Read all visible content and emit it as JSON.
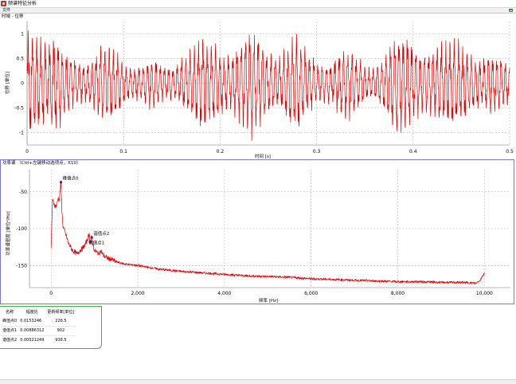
{
  "window": {
    "title": "频谱特征分析",
    "menu": "文件"
  },
  "top_panel": {
    "title": "时域 - 位移"
  },
  "bottom_panel": {
    "title": "功率谱 （Ctrl+左键移动选项点，X10）"
  },
  "colors": {
    "signal": "#e00000",
    "grid": "#a8a8a8",
    "table_border": "#3cb043",
    "bottom_frame": "#7a7acc"
  },
  "chart_data": [
    {
      "type": "line",
      "title": "",
      "xlabel": "时间 [s]",
      "ylabel": "位移 [单位]",
      "xlim": [
        0,
        0.5
      ],
      "ylim": [
        -1.25,
        1.25
      ],
      "x_ticks": [
        "0",
        "0.1",
        "0.2",
        "0.3",
        "0.4",
        "0.5"
      ],
      "y_ticks": [
        "1",
        "0.5",
        "0",
        "-0.5",
        "-1"
      ],
      "y_tick_values": [
        1,
        0.5,
        0,
        -0.5,
        -1
      ],
      "envelope": {
        "x": [
          0,
          0.01,
          0.02,
          0.03,
          0.04,
          0.05,
          0.06,
          0.07,
          0.08,
          0.09,
          0.1,
          0.11,
          0.12,
          0.13,
          0.14,
          0.15,
          0.16,
          0.17,
          0.18,
          0.19,
          0.2,
          0.21,
          0.22,
          0.23,
          0.24,
          0.25,
          0.26,
          0.27,
          0.28,
          0.29,
          0.3,
          0.31,
          0.32,
          0.33,
          0.34,
          0.35,
          0.36,
          0.37,
          0.38,
          0.39,
          0.4,
          0.41,
          0.42,
          0.43,
          0.44,
          0.45,
          0.46,
          0.47,
          0.48,
          0.49,
          0.5
        ],
        "amplitude": [
          1.05,
          0.95,
          0.8,
          0.95,
          0.6,
          0.45,
          0.35,
          0.55,
          0.8,
          0.65,
          0.4,
          0.3,
          0.35,
          0.5,
          0.35,
          0.3,
          0.45,
          0.7,
          0.9,
          0.8,
          0.6,
          0.5,
          0.7,
          1.1,
          0.85,
          0.6,
          0.45,
          0.7,
          0.9,
          0.6,
          0.4,
          0.35,
          0.5,
          0.75,
          0.55,
          0.35,
          0.3,
          0.5,
          0.95,
          1.0,
          0.7,
          0.55,
          0.6,
          0.75,
          0.85,
          0.75,
          0.55,
          0.45,
          0.6,
          0.5,
          0.4
        ],
        "dominant_frequency_hz": 226.5
      }
    },
    {
      "type": "line",
      "title": "",
      "xlabel": "频率 [Hz]",
      "ylabel": "功率谱密度 [单位²/Hz]",
      "xlim": [
        -500,
        10600
      ],
      "ylim": [
        -180,
        -20
      ],
      "x_ticks": [
        "0",
        "2,000",
        "4,000",
        "6,000",
        "8,000",
        "10,000"
      ],
      "x_tick_values": [
        0,
        2000,
        4000,
        6000,
        8000,
        10000
      ],
      "y_ticks": [
        "-50",
        "-100",
        "-150"
      ],
      "y_tick_values": [
        -50,
        -100,
        -150
      ],
      "x": [
        0,
        30,
        60,
        100,
        130,
        160,
        190,
        210,
        226.5,
        245,
        270,
        300,
        350,
        400,
        450,
        500,
        550,
        600,
        650,
        700,
        750,
        800,
        850,
        880,
        902,
        938.5,
        970,
        1000,
        1050,
        1100,
        1150,
        1200,
        1300,
        1400,
        1500,
        1700,
        2000,
        2500,
        3000,
        3500,
        4000,
        4500,
        5000,
        5500,
        6000,
        6500,
        7000,
        7500,
        8000,
        8500,
        9000,
        9500,
        9800,
        9900,
        10000
      ],
      "y": [
        -128,
        -62,
        -65,
        -70,
        -68,
        -58,
        -62,
        -45,
        -37,
        -70,
        -95,
        -102,
        -110,
        -120,
        -125,
        -130,
        -132,
        -135,
        -130,
        -128,
        -125,
        -120,
        -112,
        -108,
        -118,
        -112,
        -122,
        -130,
        -132,
        -134,
        -130,
        -136,
        -140,
        -142,
        -145,
        -148,
        -150,
        -155,
        -158,
        -160,
        -162,
        -164,
        -165,
        -166,
        -168,
        -169,
        -170,
        -171,
        -172,
        -172,
        -173,
        -173,
        -174,
        -170,
        -160
      ],
      "peaks": [
        {
          "label": "峰值点0",
          "x": 226.5,
          "y": -37
        },
        {
          "label": "谐值点1",
          "x": 902,
          "y": -118
        },
        {
          "label": "谐值点2",
          "x": 938.5,
          "y": -112
        }
      ]
    }
  ],
  "table": {
    "headers": [
      "名称",
      "幅度比",
      "更新频率[单位]"
    ],
    "rows": [
      [
        "峰值点0",
        "0.0153246",
        "226.5"
      ],
      [
        "谐值点1",
        "0.00886312",
        "902"
      ],
      [
        "谐值点2",
        "0.00521249",
        "938.5"
      ]
    ]
  }
}
